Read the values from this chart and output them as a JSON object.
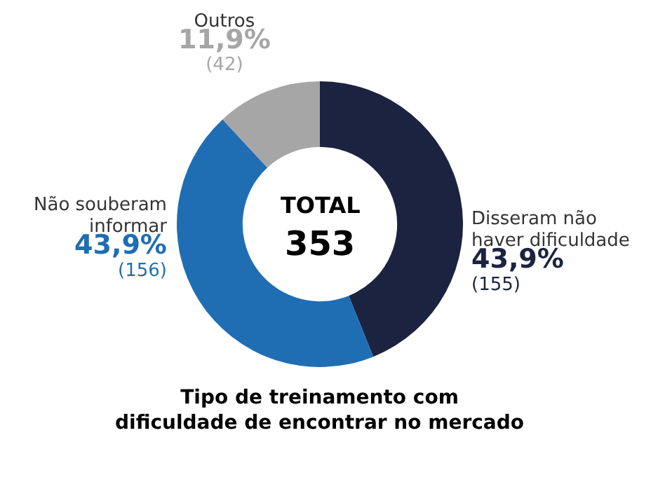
{
  "chart_data": {
    "type": "donut",
    "title": "Tipo de treinamento com\ndificuldade de encontrar no mercado",
    "categories": [
      "Disseram não\nhaver dificuldade",
      "Não souberam\ninformar",
      "Outros"
    ],
    "values": [
      155,
      156,
      42
    ],
    "value_labels": [
      "43,9%\n(155)",
      "43,9%\n(156)",
      "11,9%\n(42)"
    ],
    "colors": [
      "#1b2340",
      "#1f6eb4",
      "#a6a6a6"
    ],
    "annotations": [
      "TOTAL",
      "353"
    ],
    "legend": false
  }
}
